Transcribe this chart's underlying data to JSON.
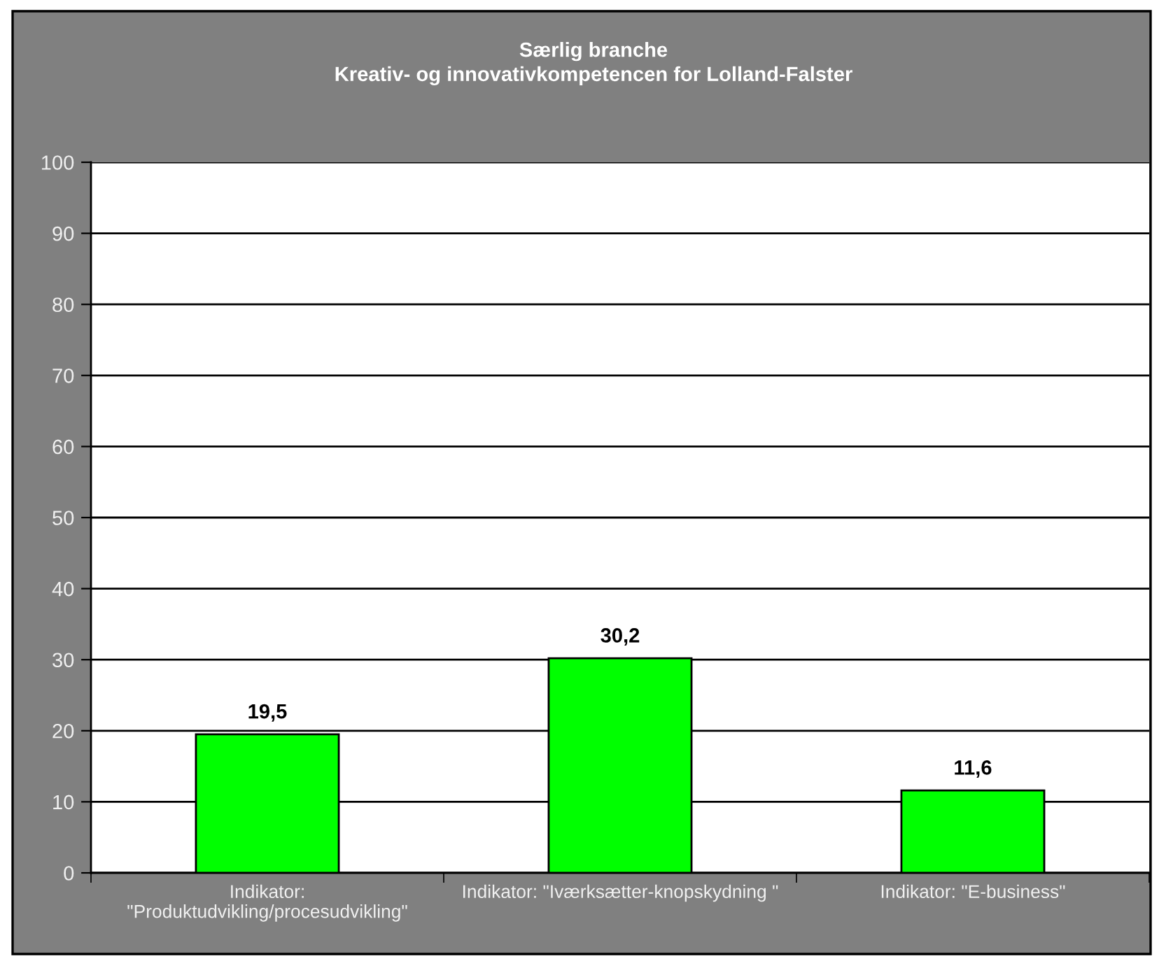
{
  "chart_data": {
    "type": "bar",
    "title": "Særlig branche\nKreativ- og innovativkompetencen for Lolland-Falster",
    "categories": [
      "Indikator:\n\"Produktudvikling/procesudvikling\"",
      "Indikator: \"Iværksætter-knopskydning \"",
      "Indikator: \"E-business\""
    ],
    "values": [
      19.5,
      30.2,
      11.6
    ],
    "value_labels": [
      "19,5",
      "30,2",
      "11,6"
    ],
    "color": "#00ff00",
    "ylim": [
      0,
      100
    ],
    "yticks": [
      0,
      10,
      20,
      30,
      40,
      50,
      60,
      70,
      80,
      90,
      100
    ],
    "grid": "y",
    "legend": false
  }
}
